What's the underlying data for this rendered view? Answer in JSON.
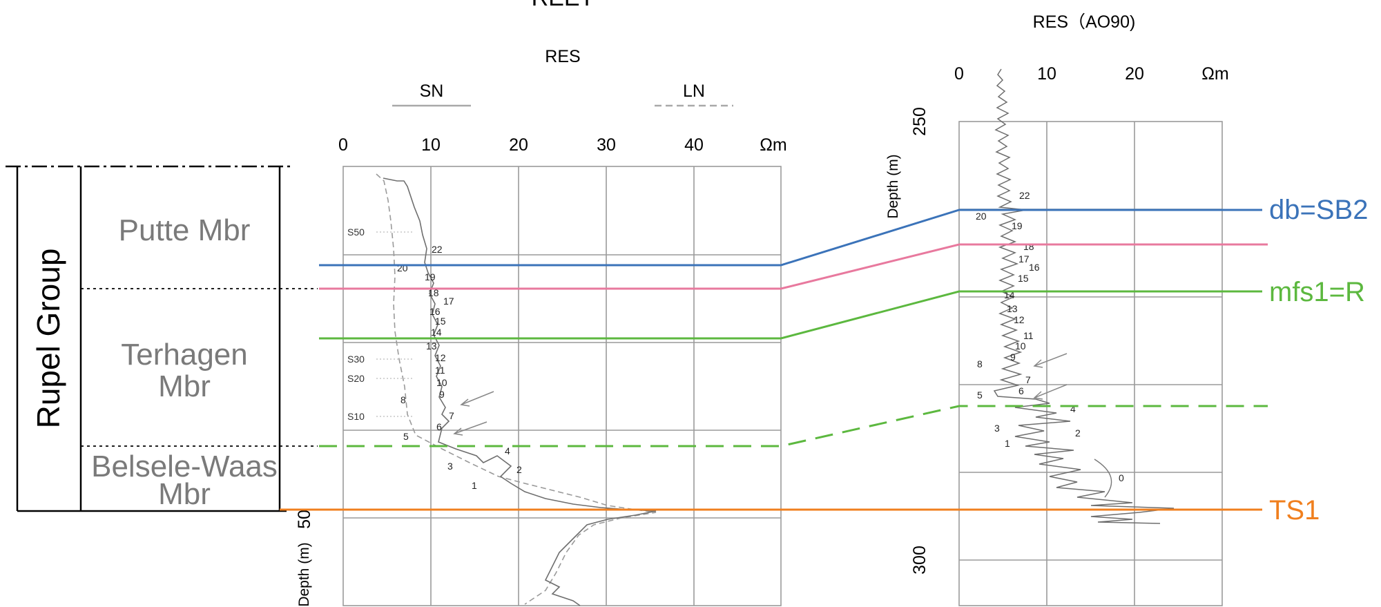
{
  "title_top": "REET",
  "left_log": {
    "title": "RES",
    "legend_sn": "SN",
    "legend_ln": "LN",
    "scale": [
      "0",
      "10",
      "20",
      "30",
      "40"
    ],
    "unit": "Ωm",
    "depth_label": "Depth (m)",
    "depth_value": "50",
    "markers": [
      "1",
      "2",
      "3",
      "4",
      "5",
      "6",
      "7",
      "8",
      "9",
      "10",
      "11",
      "12",
      "13",
      "14",
      "15",
      "16",
      "17",
      "18",
      "19",
      "20",
      "22"
    ],
    "s_markers": [
      "S50",
      "S30",
      "S20",
      "S10"
    ]
  },
  "right_log": {
    "title": "RES（AO90)",
    "scale": [
      "0",
      "10",
      "20"
    ],
    "unit": "Ωm",
    "depth_label": "Depth (m)",
    "depth_top": "250",
    "depth_bottom": "300",
    "markers": [
      "0",
      "1",
      "2",
      "3",
      "4",
      "5",
      "6",
      "7",
      "8",
      "9",
      "10",
      "11",
      "12",
      "13",
      "14",
      "15",
      "16",
      "17",
      "18",
      "19",
      "20",
      "22"
    ]
  },
  "stratigraphy": {
    "group": "Rupel Group",
    "members": [
      {
        "line1": "Putte Mbr",
        "line2": ""
      },
      {
        "line1": "Terhagen",
        "line2": "Mbr"
      },
      {
        "line1": "Belsele-Waas",
        "line2": "Mbr"
      }
    ]
  },
  "surfaces": [
    {
      "name": "db=SB2",
      "color": "#3b73b9"
    },
    {
      "name": "",
      "color": "#e8799e"
    },
    {
      "name": "mfs1=R",
      "color": "#5cb83f"
    },
    {
      "name": "",
      "color": "#5cb83f"
    },
    {
      "name": "TS1",
      "color": "#f07f1e"
    }
  ]
}
